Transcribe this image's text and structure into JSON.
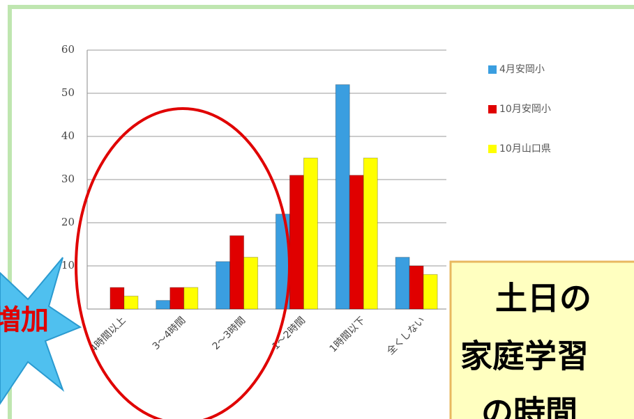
{
  "chart_data": {
    "type": "bar",
    "categories": [
      "4時間以上",
      "3～4時間",
      "2～3時間",
      "1～2時間",
      "1時間以下",
      "全くしない"
    ],
    "series": [
      {
        "name": "4月安岡小",
        "color": "#3a9ee0",
        "values": [
          0,
          2,
          11,
          22,
          52,
          12
        ]
      },
      {
        "name": "10月安岡小",
        "color": "#e00000",
        "values": [
          5,
          5,
          17,
          31,
          31,
          10
        ]
      },
      {
        "name": "10月山口県",
        "color": "#ffff00",
        "values": [
          3,
          5,
          12,
          35,
          35,
          8
        ]
      }
    ],
    "ylim": [
      0,
      60
    ],
    "yticks": [
      10,
      20,
      30,
      40,
      50,
      60
    ],
    "grid": true
  },
  "badge": "増加",
  "callout": [
    "土日の",
    "家庭学習",
    "の時間"
  ]
}
